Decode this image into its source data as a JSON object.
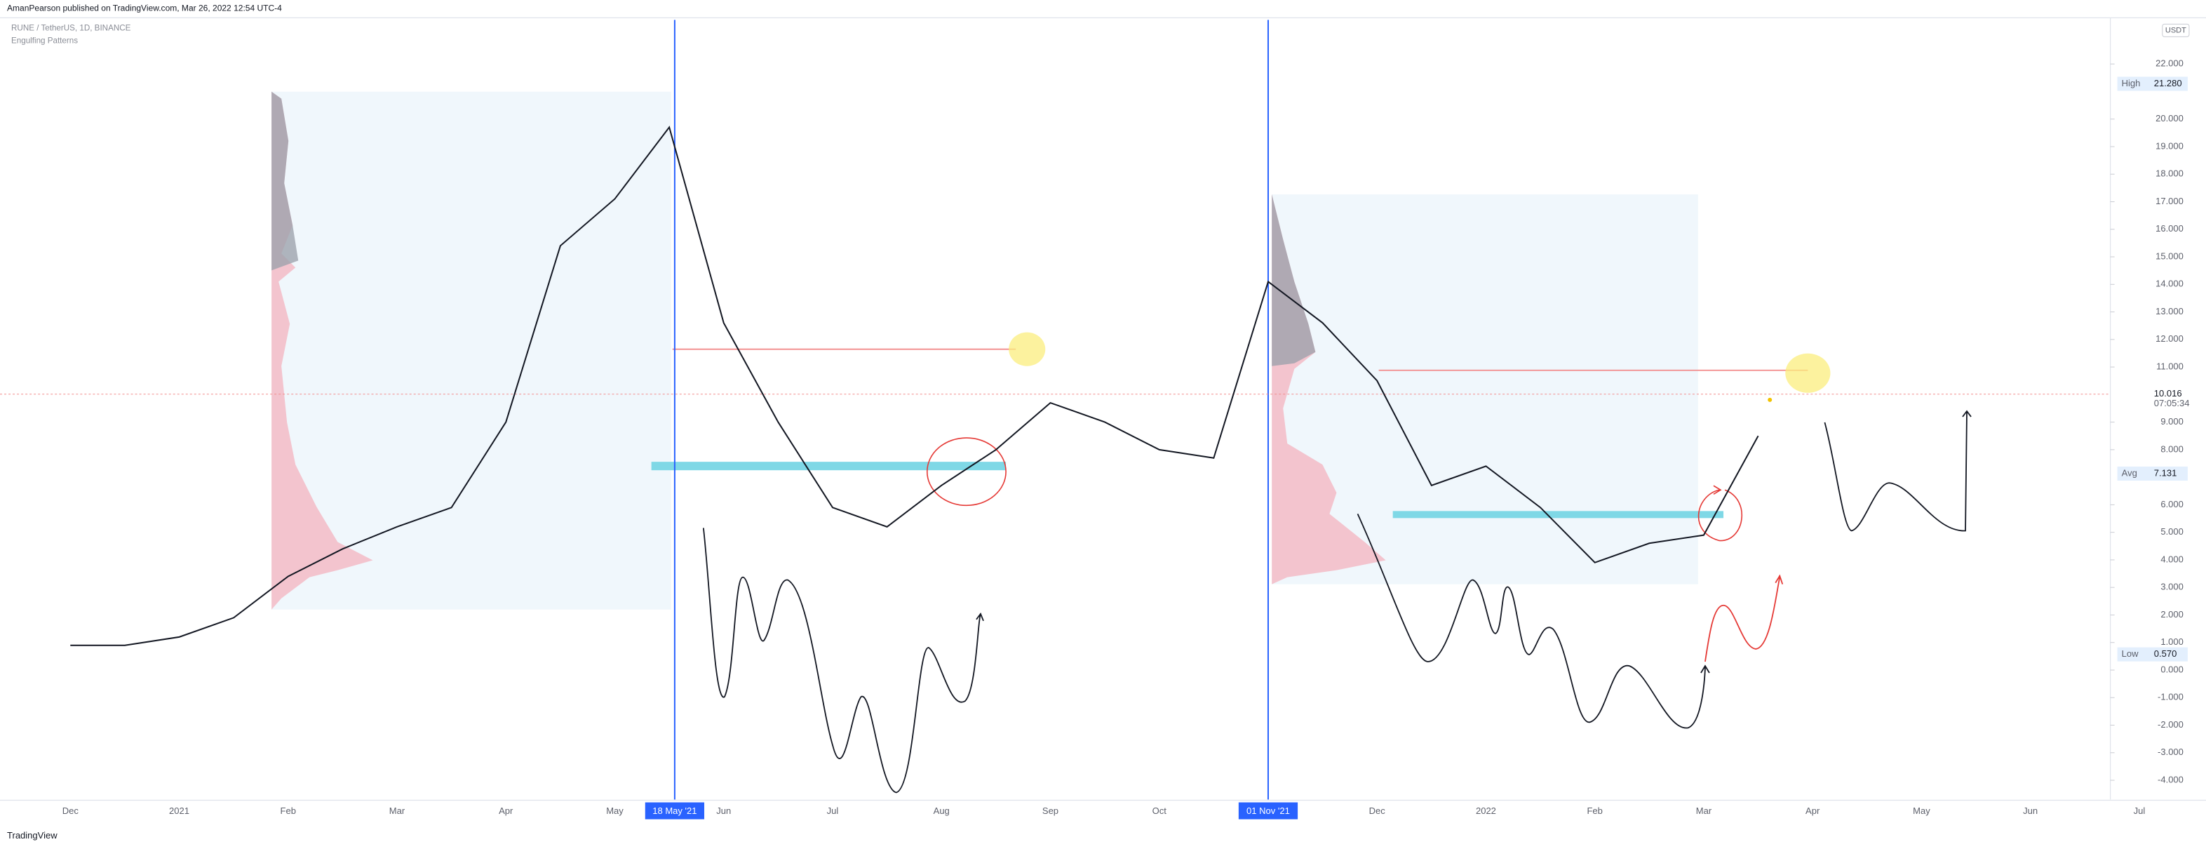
{
  "header": {
    "publisher": "AmanPearson published on TradingView.com, Mar 26, 2022 12:54 UTC-4",
    "footer": "TradingView"
  },
  "chart_data": {
    "type": "line",
    "title": "RUNE / TetherUS, 1D, BINANCE",
    "subtitle": "Engulfing Patterns",
    "currency": "USDT",
    "color": "#131722",
    "categories": [
      "Dec",
      null,
      "2021",
      null,
      "Feb",
      null,
      "Mar",
      null,
      "Apr",
      null,
      "May",
      null,
      "Jun",
      null,
      "Jul",
      null,
      "Aug",
      null,
      "Sep",
      null,
      "Oct",
      null,
      null,
      null,
      "Dec",
      null,
      "2022",
      null,
      "Feb",
      null,
      "Mar",
      null,
      "Apr",
      null,
      "May",
      null,
      "Jun",
      null,
      "Jul"
    ],
    "values": [
      0.9,
      0.9,
      1.2,
      1.9,
      3.4,
      4.4,
      5.2,
      5.9,
      9.0,
      15.4,
      17.1,
      19.7,
      12.6,
      9.0,
      5.9,
      5.2,
      6.7,
      8.0,
      9.7,
      9.0,
      8.0,
      7.7,
      14.1,
      12.6,
      10.5,
      6.7,
      7.4,
      5.9,
      3.9,
      4.6,
      4.9,
      8.5,
      null,
      null,
      null,
      null,
      null,
      null,
      null
    ],
    "ylim": [
      -4.7,
      23.6
    ],
    "yticks": [
      {
        "value": 22,
        "label": "22.000"
      },
      {
        "value": 20,
        "label": "20.000"
      },
      {
        "value": 19,
        "label": "19.000"
      },
      {
        "value": 18,
        "label": "18.000"
      },
      {
        "value": 17,
        "label": "17.000"
      },
      {
        "value": 16,
        "label": "16.000"
      },
      {
        "value": 15,
        "label": "15.000"
      },
      {
        "value": 14,
        "label": "14.000"
      },
      {
        "value": 13,
        "label": "13.000"
      },
      {
        "value": 12,
        "label": "12.000"
      },
      {
        "value": 11,
        "label": "11.000"
      },
      {
        "value": 9,
        "label": "9.000"
      },
      {
        "value": 8,
        "label": "8.000"
      },
      {
        "value": 6,
        "label": "6.000"
      },
      {
        "value": 5,
        "label": "5.000"
      },
      {
        "value": 4,
        "label": "4.000"
      },
      {
        "value": 3,
        "label": "3.000"
      },
      {
        "value": 2,
        "label": "2.000"
      },
      {
        "value": 1,
        "label": "1.000"
      },
      {
        "value": 0,
        "label": "0.000"
      },
      {
        "value": -1,
        "label": "-1.000"
      },
      {
        "value": -2,
        "label": "-2.000"
      },
      {
        "value": -3,
        "label": "-3.000"
      },
      {
        "value": -4,
        "label": "-4.000"
      }
    ],
    "price_labels": [
      {
        "label": "High",
        "value": 21.28,
        "value_label": "21.280"
      },
      {
        "label": "Avg",
        "value": 7.131,
        "value_label": "7.131"
      },
      {
        "label": "Low",
        "value": 0.57,
        "value_label": "0.570"
      }
    ],
    "last_price": {
      "value": 10.016,
      "value_label": "10.016",
      "countdown": "07:05:34"
    },
    "date_markers": [
      "18 May '21",
      "01 Nov '21"
    ]
  }
}
